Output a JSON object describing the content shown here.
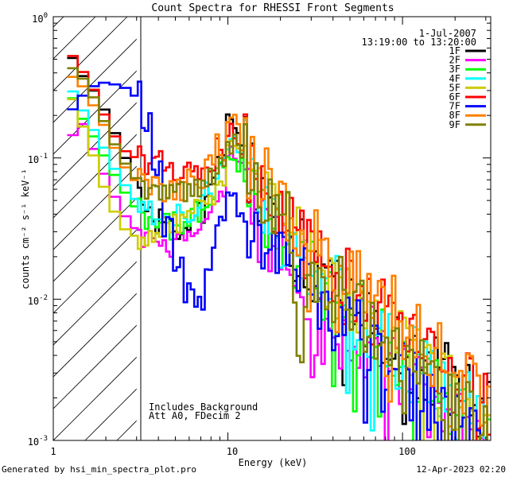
{
  "chart_data": {
    "type": "line",
    "title": "Count Spectra for RHESSI Front Segments",
    "xlabel": "Energy (keV)",
    "ylabel": "counts cm⁻² s⁻¹ keV⁻¹",
    "xscale": "log",
    "yscale": "log",
    "xlim": [
      1,
      320
    ],
    "ylim": [
      0.001,
      1
    ],
    "x_ticks": [
      {
        "value": 1,
        "label": "1"
      },
      {
        "value": 10,
        "label": "10"
      },
      {
        "value": 100,
        "label": "100"
      }
    ],
    "y_ticks": [
      {
        "value": 1,
        "base": "10",
        "exp": "0"
      },
      {
        "value": 0.1,
        "base": "10",
        "exp": "-1"
      },
      {
        "value": 0.01,
        "base": "10",
        "exp": "-2"
      },
      {
        "value": 0.001,
        "base": "10",
        "exp": "-3"
      }
    ],
    "date_label": "1-Jul-2007",
    "time_range_label": "13:19:00 to 13:20:00",
    "annotations": [
      "Includes Background",
      "Att A0, FDecim 2"
    ],
    "hatched_region": {
      "x_from": 1,
      "x_to": 3
    },
    "series": [
      {
        "name": "1F",
        "color": "#000000",
        "offset": 0.0,
        "seed": 1,
        "values": [
          0.51,
          0.38,
          0.3,
          0.22,
          0.15,
          0.1,
          0.07,
          0.05,
          0.036,
          0.03,
          0.03,
          0.033,
          0.04,
          0.06,
          0.095,
          0.19,
          0.14,
          0.08,
          0.05,
          0.038,
          0.03,
          0.025,
          0.02,
          0.017,
          0.014,
          0.012,
          0.01,
          0.0085,
          0.0072,
          0.0062,
          0.0053,
          0.0046,
          0.004,
          0.0035,
          0.003,
          0.0026,
          0.0023,
          0.002,
          0.0018,
          0.0016
        ]
      },
      {
        "name": "2F",
        "color": "#ff00ff",
        "offset": -0.05,
        "seed": 2,
        "values": [
          0.15,
          0.18,
          0.12,
          0.08,
          0.055,
          0.04,
          0.033,
          0.028,
          0.024,
          0.024,
          0.026,
          0.03,
          0.036,
          0.045,
          0.06,
          0.1,
          0.08,
          0.05,
          0.034,
          0.026,
          0.021,
          0.017,
          0.014,
          0.012,
          0.01,
          0.0085,
          0.007,
          0.006,
          0.005,
          0.0043,
          0.0037,
          0.0032,
          0.0027,
          0.0024,
          0.002,
          0.0018,
          0.0016,
          0.0014,
          0.0012,
          0.0011
        ]
      },
      {
        "name": "3F",
        "color": "#00ff00",
        "offset": -0.08,
        "seed": 3,
        "values": [
          0.28,
          0.2,
          0.15,
          0.11,
          0.08,
          0.06,
          0.048,
          0.04,
          0.035,
          0.034,
          0.035,
          0.038,
          0.045,
          0.058,
          0.08,
          0.12,
          0.1,
          0.065,
          0.045,
          0.034,
          0.027,
          0.022,
          0.018,
          0.015,
          0.012,
          0.01,
          0.0085,
          0.0072,
          0.006,
          0.005,
          0.0043,
          0.0037,
          0.0031,
          0.0027,
          0.0023,
          0.002,
          0.0017,
          0.0015,
          0.0013,
          0.0012
        ]
      },
      {
        "name": "4F",
        "color": "#00ffff",
        "offset": -0.02,
        "seed": 4,
        "values": [
          0.3,
          0.22,
          0.16,
          0.12,
          0.085,
          0.065,
          0.052,
          0.044,
          0.04,
          0.038,
          0.038,
          0.042,
          0.05,
          0.062,
          0.085,
          0.13,
          0.11,
          0.07,
          0.048,
          0.036,
          0.029,
          0.024,
          0.019,
          0.016,
          0.013,
          0.011,
          0.0092,
          0.0078,
          0.0066,
          0.0056,
          0.0048,
          0.0041,
          0.0035,
          0.003,
          0.0026,
          0.0022,
          0.0019,
          0.0017,
          0.0015,
          0.0013
        ]
      },
      {
        "name": "5F",
        "color": "#cccc00",
        "offset": 0.06,
        "seed": 5,
        "values": [
          0.25,
          0.16,
          0.1,
          0.06,
          0.04,
          0.03,
          0.027,
          0.026,
          0.027,
          0.029,
          0.032,
          0.036,
          0.043,
          0.055,
          0.075,
          0.12,
          0.1,
          0.066,
          0.047,
          0.036,
          0.029,
          0.024,
          0.02,
          0.017,
          0.014,
          0.012,
          0.01,
          0.0086,
          0.0073,
          0.0062,
          0.0053,
          0.0045,
          0.0039,
          0.0033,
          0.0028,
          0.0024,
          0.0021,
          0.0018,
          0.0016,
          0.0014
        ]
      },
      {
        "name": "6F",
        "color": "#ff0000",
        "offset": 0.02,
        "seed": 6,
        "values": [
          0.52,
          0.4,
          0.3,
          0.2,
          0.14,
          0.11,
          0.1,
          0.095,
          0.09,
          0.085,
          0.08,
          0.078,
          0.08,
          0.09,
          0.11,
          0.16,
          0.13,
          0.085,
          0.06,
          0.046,
          0.037,
          0.03,
          0.025,
          0.021,
          0.017,
          0.014,
          0.012,
          0.01,
          0.0087,
          0.0074,
          0.0063,
          0.0054,
          0.0046,
          0.004,
          0.0034,
          0.003,
          0.0026,
          0.0023,
          0.002,
          0.0018
        ]
      },
      {
        "name": "7F",
        "color": "#0000ff",
        "offset": -0.12,
        "seed": 7,
        "values": [
          0.24,
          0.3,
          0.35,
          0.37,
          0.36,
          0.34,
          0.3,
          0.2,
          0.1,
          0.035,
          0.02,
          0.012,
          0.01,
          0.02,
          0.04,
          0.055,
          0.05,
          0.04,
          0.032,
          0.026,
          0.021,
          0.017,
          0.014,
          0.012,
          0.0098,
          0.0082,
          0.0069,
          0.0058,
          0.0049,
          0.0042,
          0.0036,
          0.0031,
          0.0026,
          0.0022,
          0.0019,
          0.0016,
          0.0014,
          0.0012,
          0.0011,
          0.001
        ]
      },
      {
        "name": "8F",
        "color": "#ff8000",
        "offset": 0.1,
        "seed": 8,
        "values": [
          0.35,
          0.3,
          0.22,
          0.16,
          0.11,
          0.08,
          0.065,
          0.058,
          0.055,
          0.055,
          0.057,
          0.062,
          0.07,
          0.085,
          0.11,
          0.15,
          0.13,
          0.09,
          0.065,
          0.05,
          0.041,
          0.034,
          0.028,
          0.024,
          0.02,
          0.017,
          0.014,
          0.012,
          0.01,
          0.0088,
          0.0075,
          0.0065,
          0.0056,
          0.0048,
          0.0041,
          0.0036,
          0.0031,
          0.0027,
          0.0024,
          0.0021
        ]
      },
      {
        "name": "9F",
        "color": "#808000",
        "offset": -0.06,
        "seed": 9,
        "values": [
          0.45,
          0.38,
          0.28,
          0.19,
          0.13,
          0.095,
          0.075,
          0.065,
          0.06,
          0.058,
          0.058,
          0.062,
          0.07,
          0.082,
          0.1,
          0.13,
          0.11,
          0.075,
          0.054,
          0.041,
          0.033,
          0.027,
          0.022,
          0.018,
          0.015,
          0.012,
          0.01,
          0.0085,
          0.0071,
          0.006,
          0.005,
          0.0042,
          0.0035,
          0.003,
          0.0025,
          0.0021,
          0.0018,
          0.0015,
          0.0013,
          0.0011
        ]
      }
    ]
  },
  "footer": {
    "generator": "Generated by hsi_min_spectra_plot.pro",
    "timestamp": "12-Apr-2023 02:20"
  }
}
